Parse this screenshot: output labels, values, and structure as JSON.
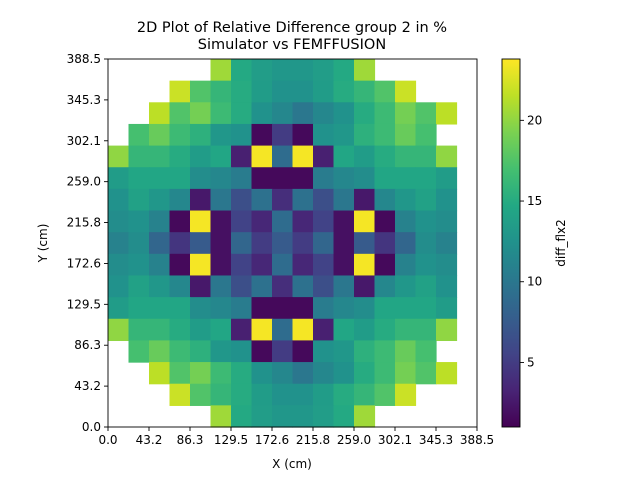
{
  "chart_data": {
    "type": "heatmap",
    "title_line1": "2D Plot of Relative Difference group 2 in %",
    "title_line2": "Simulator vs FEMFFUSION",
    "xlabel": "X (cm)",
    "ylabel": "Y (cm)",
    "colorbar_label": "diff_flx2",
    "colormap": "viridis",
    "xlim": [
      0.0,
      388.5
    ],
    "ylim": [
      0.0,
      388.5
    ],
    "x_ticks": [
      "0.0",
      "43.2",
      "86.3",
      "129.5",
      "172.6",
      "215.8",
      "259.0",
      "302.1",
      "345.3",
      "388.5"
    ],
    "y_ticks": [
      "0.0",
      "43.2",
      "86.3",
      "129.5",
      "172.6",
      "215.8",
      "259.0",
      "302.1",
      "345.3",
      "388.5"
    ],
    "color_range": [
      1.0,
      23.8
    ],
    "colorbar_ticks": [
      "5",
      "10",
      "15",
      "20"
    ],
    "colorbar_tick_values": [
      5,
      10,
      15,
      20
    ],
    "grid": false,
    "rows_top_to_bottom": [
      [
        null,
        null,
        null,
        null,
        null,
        20.5,
        14.8,
        13.6,
        13.0,
        13.0,
        13.6,
        14.8,
        20.5,
        null,
        null,
        null,
        null,
        null
      ],
      [
        null,
        null,
        null,
        22.0,
        17.5,
        16.0,
        15.0,
        13.5,
        12.5,
        12.5,
        13.5,
        15.0,
        16.0,
        17.5,
        22.0,
        null,
        null,
        null
      ],
      [
        null,
        null,
        21.5,
        17.5,
        19.0,
        16.5,
        15.0,
        12.5,
        11.5,
        10.0,
        11.5,
        12.5,
        15.0,
        16.5,
        19.0,
        17.5,
        21.5,
        null,
        null
      ],
      [
        null,
        17.0,
        18.5,
        16.5,
        15.5,
        13.0,
        12.5,
        1.5,
        5.0,
        1.5,
        12.5,
        13.0,
        15.5,
        16.5,
        18.5,
        17.0,
        null,
        null
      ],
      [
        20.0,
        16.0,
        16.0,
        15.0,
        13.5,
        14.5,
        3.0,
        23.5,
        9.0,
        23.5,
        3.0,
        14.5,
        13.5,
        15.0,
        16.0,
        16.0,
        20.0,
        null
      ],
      [
        13.5,
        14.5,
        14.5,
        14.5,
        12.0,
        11.5,
        10.5,
        1.5,
        1.5,
        1.5,
        10.5,
        11.5,
        12.0,
        14.5,
        14.5,
        14.5,
        13.5,
        null
      ],
      [
        12.5,
        14.0,
        13.0,
        11.5,
        2.5,
        10.0,
        6.5,
        9.5,
        4.0,
        9.5,
        6.5,
        10.0,
        2.5,
        11.5,
        13.0,
        14.0,
        12.5,
        null
      ],
      [
        12.0,
        12.5,
        11.0,
        1.5,
        23.5,
        2.0,
        5.5,
        3.5,
        9.0,
        3.5,
        5.5,
        2.0,
        23.5,
        1.5,
        11.0,
        12.5,
        12.0,
        null
      ],
      [
        11.0,
        12.0,
        8.5,
        4.5,
        7.5,
        2.0,
        8.5,
        5.0,
        7.5,
        5.0,
        8.5,
        2.0,
        7.5,
        4.5,
        8.5,
        12.0,
        11.0,
        null
      ],
      [
        12.0,
        12.5,
        11.0,
        1.5,
        23.5,
        2.0,
        5.5,
        3.5,
        9.0,
        3.5,
        5.5,
        2.0,
        23.5,
        1.5,
        11.0,
        12.5,
        12.0,
        null
      ],
      [
        12.5,
        14.0,
        13.0,
        11.5,
        2.5,
        10.0,
        6.5,
        9.5,
        4.0,
        9.5,
        6.5,
        10.0,
        2.5,
        11.5,
        13.0,
        14.0,
        12.5,
        null
      ],
      [
        13.5,
        14.5,
        14.5,
        14.5,
        12.0,
        11.5,
        10.5,
        1.5,
        1.5,
        1.5,
        10.5,
        11.5,
        12.0,
        14.5,
        14.5,
        14.5,
        13.5,
        null
      ],
      [
        20.0,
        16.0,
        16.0,
        15.0,
        13.5,
        14.5,
        3.0,
        23.5,
        9.0,
        23.5,
        3.0,
        14.5,
        13.5,
        15.0,
        16.0,
        16.0,
        20.0,
        null
      ],
      [
        null,
        17.0,
        18.5,
        16.5,
        15.5,
        13.0,
        12.5,
        1.5,
        5.0,
        1.5,
        12.5,
        13.0,
        15.5,
        16.5,
        18.5,
        17.0,
        null,
        null
      ],
      [
        null,
        null,
        21.5,
        17.5,
        19.0,
        16.5,
        15.0,
        12.5,
        11.5,
        10.0,
        11.5,
        12.5,
        15.0,
        16.5,
        19.0,
        17.5,
        21.5,
        null
      ],
      [
        null,
        null,
        null,
        22.0,
        17.5,
        16.0,
        15.0,
        13.5,
        12.5,
        12.5,
        13.5,
        15.0,
        16.0,
        17.5,
        22.0,
        null,
        null,
        null
      ],
      [
        null,
        null,
        null,
        null,
        null,
        20.5,
        14.8,
        13.6,
        13.0,
        13.0,
        13.6,
        14.8,
        20.5,
        null,
        null,
        null,
        null,
        null
      ]
    ]
  }
}
